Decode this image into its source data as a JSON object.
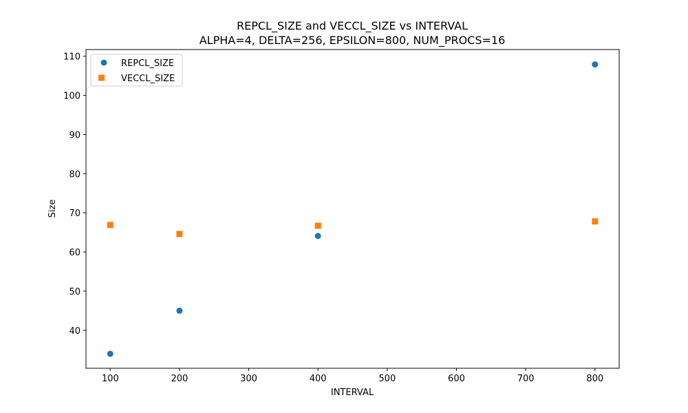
{
  "chart_data": {
    "type": "scatter",
    "title": "REPCL_SIZE and VECCL_SIZE vs INTERVAL",
    "subtitle": "ALPHA=4, DELTA=256, EPSILON=800, NUM_PROCS=16",
    "xlabel": "INTERVAL",
    "ylabel": "Size",
    "xlim": [
      65,
      835
    ],
    "ylim": [
      30.3,
      111.7
    ],
    "xticks": [
      100,
      200,
      300,
      400,
      500,
      600,
      700,
      800
    ],
    "yticks": [
      40,
      50,
      60,
      70,
      80,
      90,
      100,
      110
    ],
    "grid": false,
    "legend_position": "top-left",
    "series": [
      {
        "name": "REPCL_SIZE",
        "marker": "circle",
        "color": "#1f77b4",
        "x": [
          100,
          200,
          400,
          800
        ],
        "y": [
          34,
          45,
          64.1,
          107.9
        ]
      },
      {
        "name": "VECCL_SIZE",
        "marker": "square",
        "color": "#ff7f0e",
        "x": [
          100,
          200,
          400,
          800
        ],
        "y": [
          66.9,
          64.6,
          66.7,
          67.8
        ]
      }
    ]
  }
}
